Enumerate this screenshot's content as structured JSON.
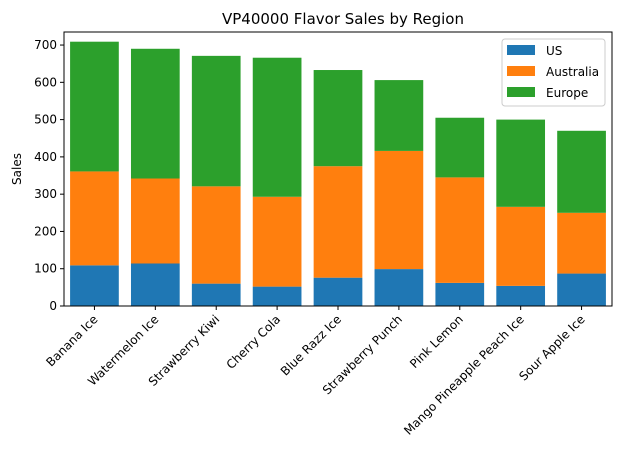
{
  "chart_data": {
    "type": "bar",
    "stacked": true,
    "title": "VP40000 Flavor Sales by Region",
    "xlabel": "",
    "ylabel": "Sales",
    "ylim": [
      0,
      735
    ],
    "yticks": [
      0,
      100,
      200,
      300,
      400,
      500,
      600,
      700
    ],
    "grid": false,
    "legend": "top-right",
    "categories": [
      "Banana Ice",
      "Watermelon Ice",
      "Strawberry Kiwi",
      "Cherry Cola",
      "Blue Razz Ice",
      "Strawberry Punch",
      "Pink Lemon",
      "Mango Pineapple Peach Ice",
      "Sour Apple Ice"
    ],
    "series": [
      {
        "name": "US",
        "color": "#1f77b4",
        "values": [
          109,
          114,
          60,
          52,
          76,
          99,
          62,
          54,
          87
        ]
      },
      {
        "name": "Australia",
        "color": "#ff7f0e",
        "values": [
          252,
          228,
          261,
          241,
          299,
          317,
          283,
          212,
          163
        ]
      },
      {
        "name": "Europe",
        "color": "#2ca02c",
        "values": [
          348,
          348,
          350,
          373,
          258,
          190,
          160,
          234,
          220
        ]
      }
    ]
  }
}
